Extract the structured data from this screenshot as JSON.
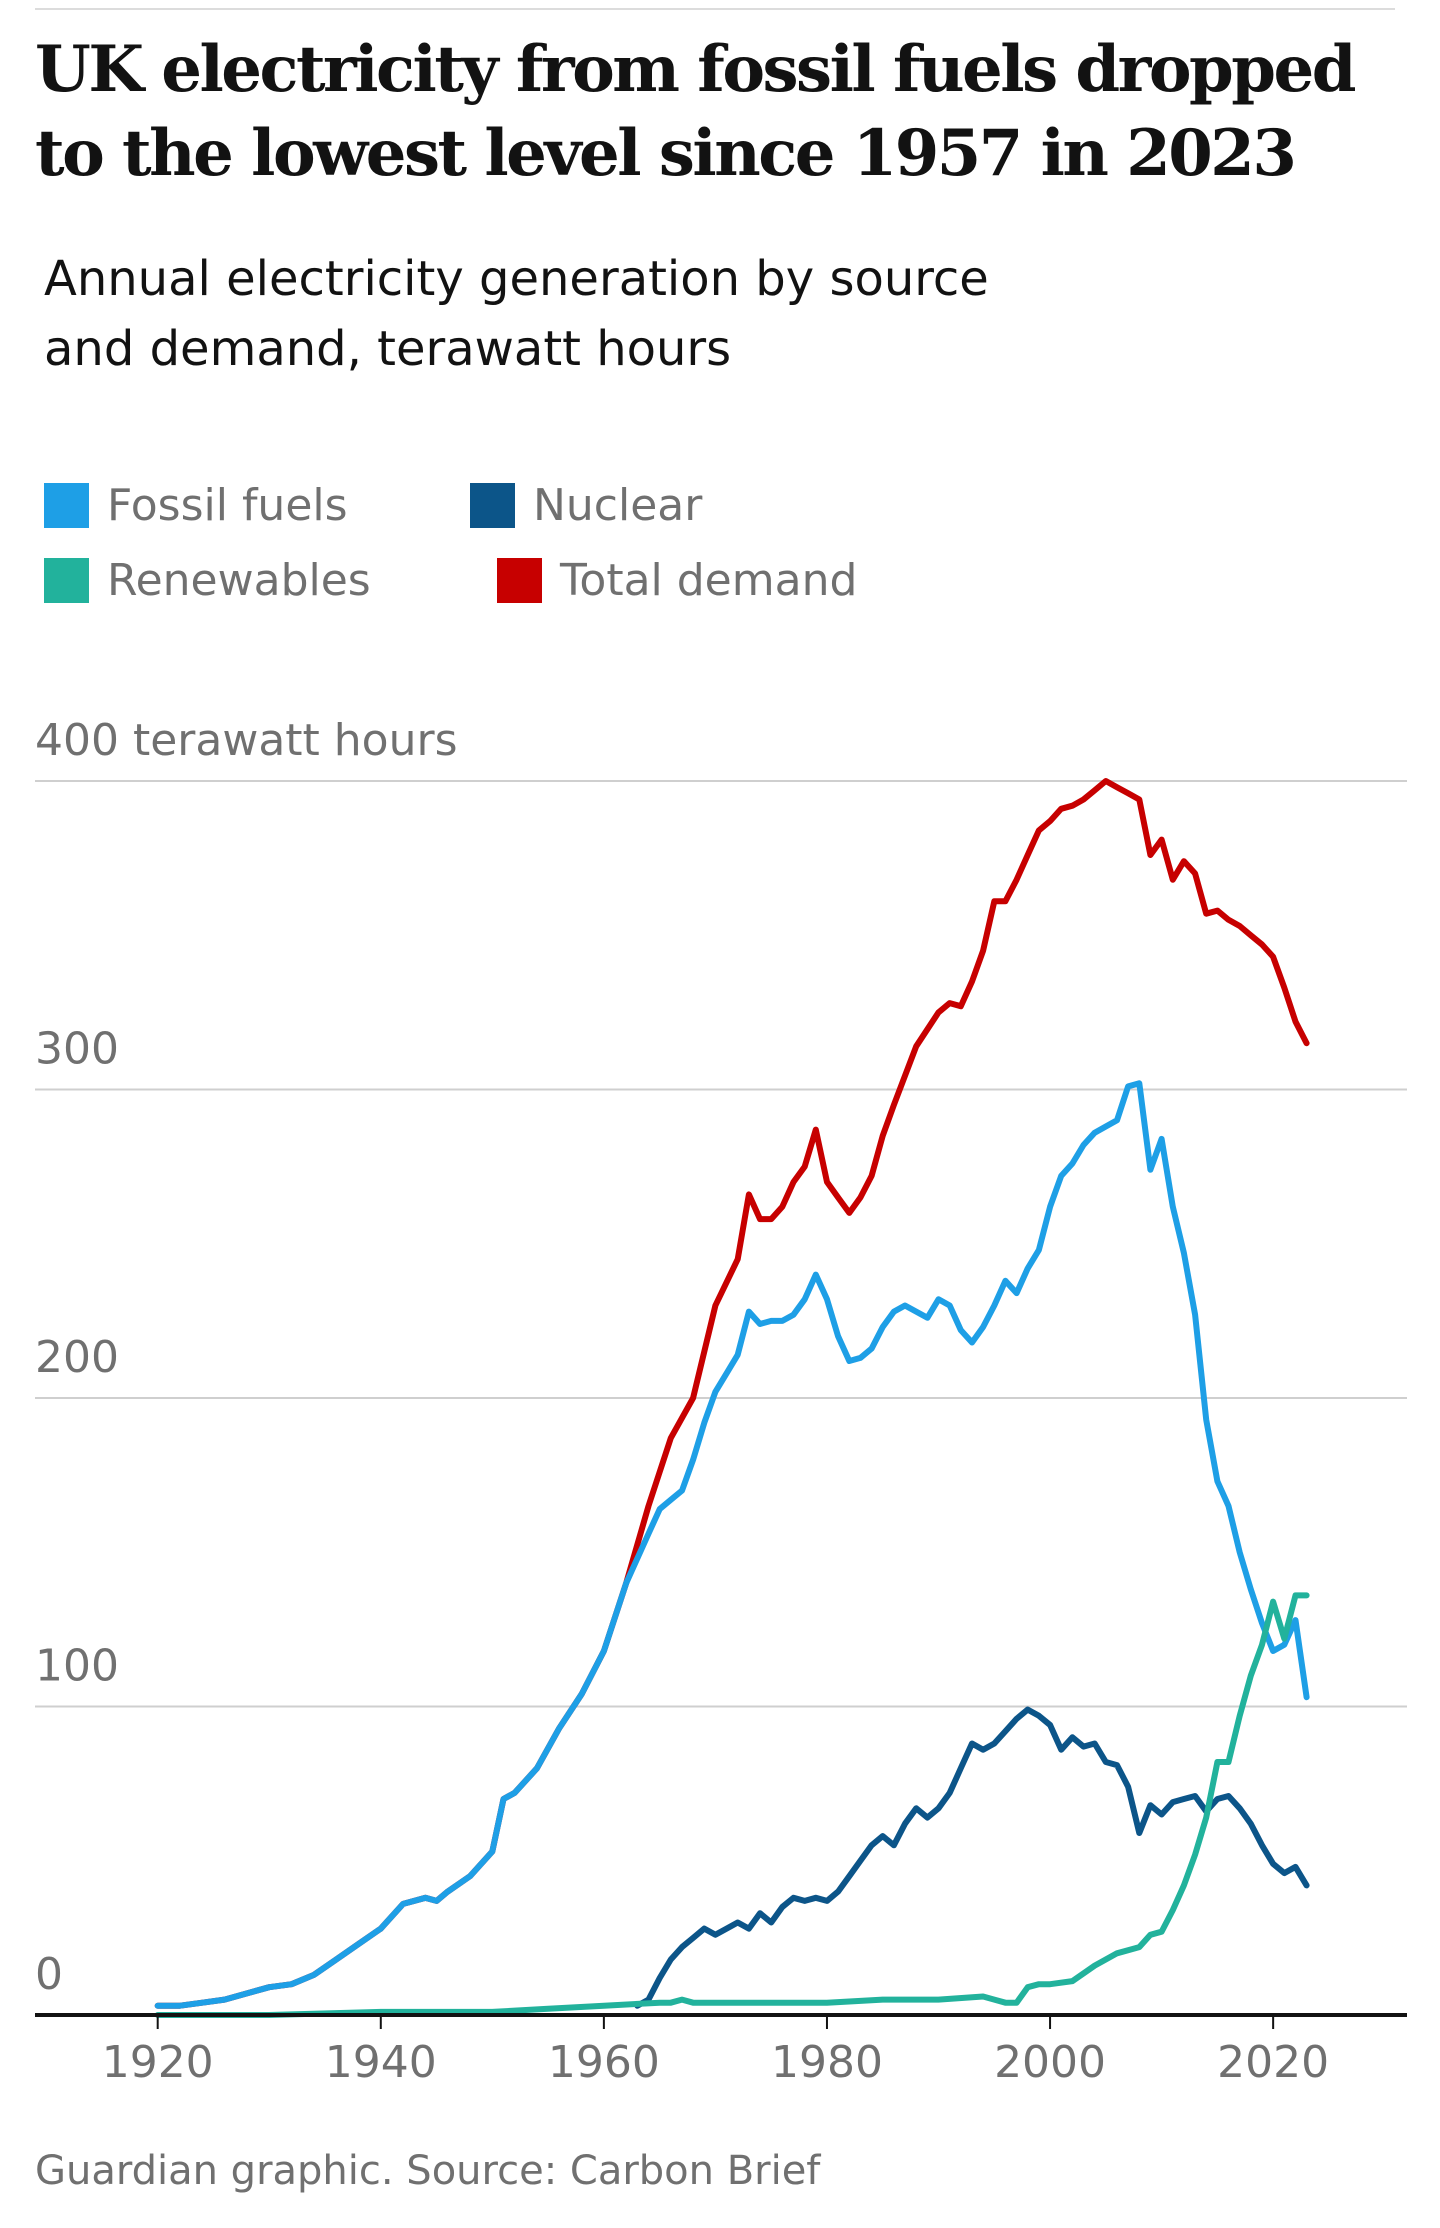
{
  "header": {
    "title": "UK electricity from fossil fuels dropped to the lowest level since 1957 in 2023",
    "subtitle": "Annual electricity generation by source and demand, terawatt hours"
  },
  "legend": [
    {
      "label": "Fossil fuels",
      "color": "#1e9fe6"
    },
    {
      "label": "Nuclear",
      "color": "#0c5589"
    },
    {
      "label": "Renewables",
      "color": "#22b29c"
    },
    {
      "label": "Total demand",
      "color": "#c70000"
    }
  ],
  "footer": {
    "source": "Guardian graphic. Source: Carbon Brief"
  },
  "chart_data": {
    "type": "line",
    "title": "UK electricity from fossil fuels dropped to the lowest level since 1957 in 2023",
    "subtitle": "Annual electricity generation by source and demand, terawatt hours",
    "xlabel": "",
    "ylabel": "",
    "xlim": [
      1909,
      2032
    ],
    "ylim": [
      0,
      400
    ],
    "x_ticks": [
      1920,
      1940,
      1960,
      1980,
      2000,
      2020
    ],
    "y_ticks": [
      {
        "value": 0,
        "label": "0"
      },
      {
        "value": 100,
        "label": "100"
      },
      {
        "value": 200,
        "label": "200"
      },
      {
        "value": 300,
        "label": "300"
      },
      {
        "value": 400,
        "label": "400 terawatt hours"
      }
    ],
    "grid": true,
    "legend_position": "top-left",
    "series": [
      {
        "name": "Total demand",
        "color": "#c70000",
        "x": [
          1920,
          1922,
          1924,
          1926,
          1928,
          1930,
          1932,
          1934,
          1936,
          1938,
          1940,
          1942,
          1944,
          1945,
          1946,
          1948,
          1950,
          1951,
          1952,
          1954,
          1956,
          1958,
          1960,
          1962,
          1964,
          1966,
          1968,
          1970,
          1972,
          1973,
          1974,
          1975,
          1976,
          1977,
          1978,
          1979,
          1980,
          1981,
          1982,
          1983,
          1984,
          1985,
          1986,
          1988,
          1990,
          1991,
          1992,
          1993,
          1994,
          1995,
          1996,
          1997,
          1998,
          1999,
          2000,
          2001,
          2002,
          2003,
          2004,
          2005,
          2006,
          2007,
          2008,
          2009,
          2010,
          2011,
          2012,
          2013,
          2014,
          2015,
          2016,
          2017,
          2018,
          2019,
          2020,
          2021,
          2022,
          2023
        ],
        "values": [
          3,
          3,
          4,
          5,
          7,
          9,
          10,
          13,
          18,
          23,
          28,
          36,
          38,
          37,
          40,
          45,
          53,
          70,
          72,
          80,
          93,
          104,
          118,
          140,
          165,
          187,
          200,
          230,
          245,
          266,
          258,
          258,
          262,
          270,
          275,
          287,
          270,
          265,
          260,
          265,
          272,
          285,
          295,
          314,
          325,
          328,
          327,
          335,
          345,
          361,
          361,
          368,
          376,
          384,
          387,
          391,
          392,
          394,
          397,
          400,
          398,
          396,
          394,
          376,
          381,
          368,
          374,
          370,
          357,
          358,
          355,
          353,
          350,
          347,
          343,
          333,
          322,
          315
        ]
      },
      {
        "name": "Fossil fuels",
        "color": "#1e9fe6",
        "x": [
          1920,
          1922,
          1924,
          1926,
          1928,
          1930,
          1932,
          1934,
          1936,
          1938,
          1940,
          1942,
          1944,
          1945,
          1946,
          1948,
          1950,
          1951,
          1952,
          1954,
          1956,
          1958,
          1960,
          1962,
          1964,
          1965,
          1966,
          1967,
          1968,
          1969,
          1970,
          1971,
          1972,
          1973,
          1974,
          1975,
          1976,
          1977,
          1978,
          1979,
          1980,
          1981,
          1982,
          1983,
          1984,
          1985,
          1986,
          1987,
          1988,
          1989,
          1990,
          1991,
          1992,
          1993,
          1994,
          1995,
          1996,
          1997,
          1998,
          1999,
          2000,
          2001,
          2002,
          2003,
          2004,
          2005,
          2006,
          2007,
          2008,
          2009,
          2010,
          2011,
          2012,
          2013,
          2014,
          2015,
          2016,
          2017,
          2018,
          2019,
          2020,
          2021,
          2022,
          2023
        ],
        "values": [
          3,
          3,
          4,
          5,
          7,
          9,
          10,
          13,
          18,
          23,
          28,
          36,
          38,
          37,
          40,
          45,
          53,
          70,
          72,
          80,
          93,
          104,
          118,
          140,
          156,
          164,
          167,
          170,
          180,
          192,
          202,
          208,
          214,
          228,
          224,
          225,
          225,
          227,
          232,
          240,
          232,
          220,
          212,
          213,
          216,
          223,
          228,
          230,
          228,
          226,
          232,
          230,
          222,
          218,
          223,
          230,
          238,
          234,
          242,
          248,
          262,
          272,
          276,
          282,
          286,
          288,
          290,
          301,
          302,
          274,
          284,
          262,
          247,
          227,
          193,
          173,
          165,
          150,
          138,
          127,
          118,
          120,
          128,
          103
        ]
      },
      {
        "name": "Nuclear",
        "color": "#0c5589",
        "x": [
          1963,
          1964,
          1965,
          1966,
          1967,
          1968,
          1969,
          1970,
          1971,
          1972,
          1973,
          1974,
          1975,
          1976,
          1977,
          1978,
          1979,
          1980,
          1981,
          1982,
          1983,
          1984,
          1985,
          1986,
          1987,
          1988,
          1989,
          1990,
          1991,
          1992,
          1993,
          1994,
          1995,
          1996,
          1997,
          1998,
          1999,
          2000,
          2001,
          2002,
          2003,
          2004,
          2005,
          2006,
          2007,
          2008,
          2009,
          2010,
          2011,
          2012,
          2013,
          2014,
          2015,
          2016,
          2017,
          2018,
          2019,
          2020,
          2021,
          2022,
          2023
        ],
        "values": [
          3,
          5,
          12,
          18,
          22,
          25,
          28,
          26,
          28,
          30,
          28,
          33,
          30,
          35,
          38,
          37,
          38,
          37,
          40,
          45,
          50,
          55,
          58,
          55,
          62,
          67,
          64,
          67,
          72,
          80,
          88,
          86,
          88,
          92,
          96,
          99,
          97,
          94,
          86,
          90,
          87,
          88,
          82,
          81,
          74,
          59,
          68,
          65,
          69,
          70,
          71,
          66,
          70,
          71,
          67,
          62,
          55,
          49,
          46,
          48,
          42
        ]
      },
      {
        "name": "Renewables",
        "color": "#22b29c",
        "x": [
          1920,
          1930,
          1940,
          1950,
          1955,
          1960,
          1965,
          1966,
          1967,
          1968,
          1970,
          1975,
          1980,
          1985,
          1990,
          1994,
          1995,
          1996,
          1997,
          1998,
          1999,
          2000,
          2002,
          2004,
          2006,
          2008,
          2009,
          2010,
          2011,
          2012,
          2013,
          2014,
          2015,
          2016,
          2017,
          2018,
          2019,
          2020,
          2021,
          2022,
          2023
        ],
        "values": [
          0,
          0,
          1,
          1,
          2,
          3,
          4,
          4,
          5,
          4,
          4,
          4,
          4,
          5,
          5,
          6,
          5,
          4,
          4,
          9,
          10,
          10,
          11,
          16,
          20,
          22,
          26,
          27,
          34,
          42,
          52,
          64,
          82,
          82,
          97,
          110,
          120,
          134,
          122,
          136,
          136
        ]
      }
    ]
  }
}
